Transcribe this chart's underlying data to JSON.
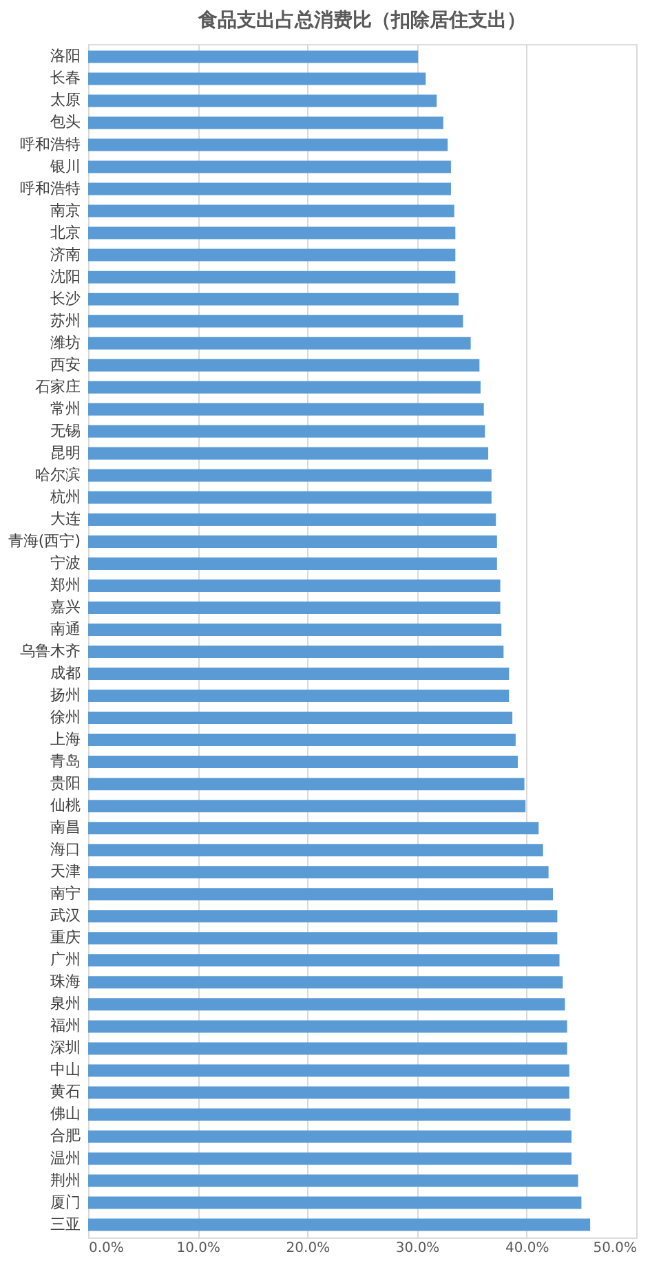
{
  "chart_data": {
    "type": "bar",
    "orientation": "horizontal",
    "title": "食品支出占总消费比（扣除居住支出）",
    "categories": [
      "洛阳",
      "长春",
      "太原",
      "包头",
      "呼和浩特",
      "银川",
      "呼和浩特",
      "南京",
      "北京",
      "济南",
      "沈阳",
      "长沙",
      "苏州",
      "潍坊",
      "西安",
      "石家庄",
      "常州",
      "无锡",
      "昆明",
      "哈尔滨",
      "杭州",
      "大连",
      "青海(西宁)",
      "宁波",
      "郑州",
      "嘉兴",
      "南通",
      "乌鲁木齐",
      "成都",
      "扬州",
      "徐州",
      "上海",
      "青岛",
      "贵阳",
      "仙桃",
      "南昌",
      "海口",
      "天津",
      "南宁",
      "武汉",
      "重庆",
      "广州",
      "珠海",
      "泉州",
      "福州",
      "深圳",
      "中山",
      "黄石",
      "佛山",
      "合肥",
      "温州",
      "荆州",
      "厦门",
      "三亚"
    ],
    "values": [
      30.1,
      30.8,
      31.8,
      32.4,
      32.8,
      33.1,
      33.1,
      33.4,
      33.5,
      33.5,
      33.5,
      33.8,
      34.2,
      34.9,
      35.7,
      35.8,
      36.1,
      36.2,
      36.5,
      36.8,
      36.8,
      37.2,
      37.3,
      37.3,
      37.6,
      37.6,
      37.7,
      37.9,
      38.4,
      38.4,
      38.7,
      39.0,
      39.2,
      39.8,
      39.9,
      41.1,
      41.5,
      42.0,
      42.4,
      42.8,
      42.8,
      43.0,
      43.3,
      43.5,
      43.7,
      43.7,
      43.9,
      43.9,
      44.0,
      44.1,
      44.1,
      44.7,
      45.0,
      45.8
    ],
    "color": "#5b9bd5",
    "xlim": [
      0,
      50
    ],
    "xticks": [
      {
        "value": 0,
        "label": "0.0%"
      },
      {
        "value": 10,
        "label": "10.0%"
      },
      {
        "value": 20,
        "label": "20.0%"
      },
      {
        "value": 30,
        "label": "30.0%"
      },
      {
        "value": 40,
        "label": "40.0%"
      },
      {
        "value": 50,
        "label": "50.0%"
      }
    ],
    "grid": "x"
  }
}
